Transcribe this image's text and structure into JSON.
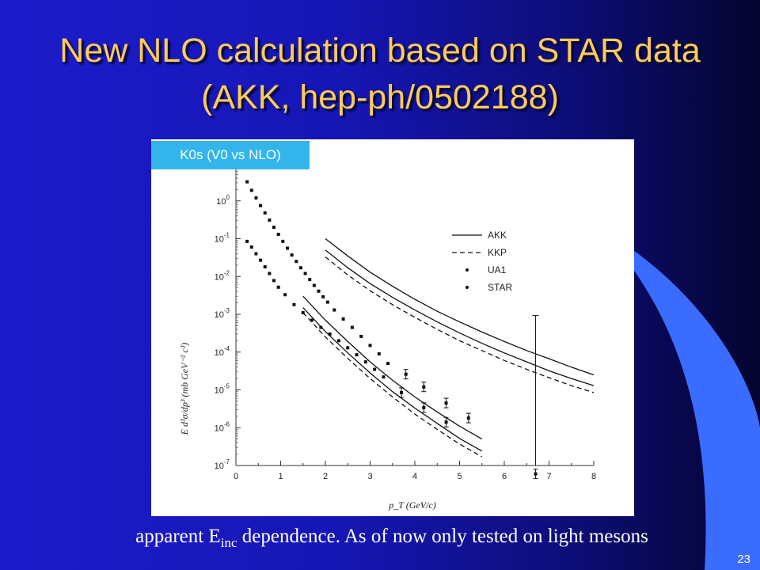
{
  "slide": {
    "title_line1": "New NLO calculation based on STAR data",
    "title_line2": "(AKK, hep-ph/0502188)",
    "chart_label": "K0s (V0 vs NLO)",
    "caption_pre": "apparent E",
    "caption_sub": "inc",
    "caption_post": " dependence. As of now only tested on light mesons",
    "slide_number": "23",
    "colors": {
      "background": "#1616b4",
      "title": "#ffcc55",
      "label_bg": "#33b5ec",
      "accent_shape": "#3a6cff"
    }
  },
  "chart_data": {
    "type": "scatter",
    "title": "",
    "xlabel": "p_T (GeV/c)",
    "ylabel": "E d³σ/dp³ (mb GeV⁻² c³)",
    "xlim": [
      0,
      8
    ],
    "ylim_log10": [
      -7,
      1
    ],
    "log_y": true,
    "grid": false,
    "legend_position": "top-right",
    "x_ticks": [
      "0",
      "1",
      "2",
      "3",
      "4",
      "5",
      "6",
      "7",
      "8"
    ],
    "y_ticks": [
      {
        "base": "10",
        "exp": "0",
        "log10": 0
      },
      {
        "base": "10",
        "exp": "-1",
        "log10": -1
      },
      {
        "base": "10",
        "exp": "-2",
        "log10": -2
      },
      {
        "base": "10",
        "exp": "-3",
        "log10": -3
      },
      {
        "base": "10",
        "exp": "-4",
        "log10": -4
      },
      {
        "base": "10",
        "exp": "-5",
        "log10": -5
      },
      {
        "base": "10",
        "exp": "-6",
        "log10": -6
      },
      {
        "base": "10",
        "exp": "-7",
        "log10": -7
      }
    ],
    "legend": [
      "AKK",
      "KKP",
      "UA1",
      "STAR"
    ],
    "series": [
      {
        "name": "UA1",
        "kind": "points",
        "x": [
          0.25,
          0.35,
          0.45,
          0.55,
          0.65,
          0.75,
          0.85,
          0.95,
          1.05,
          1.15,
          1.25,
          1.35,
          1.45,
          1.55,
          1.65,
          1.75,
          1.85,
          1.95,
          2.05,
          2.2,
          2.4,
          2.6,
          2.8,
          3.0,
          3.2,
          3.4
        ],
        "y": [
          3.2,
          1.9,
          1.2,
          0.75,
          0.48,
          0.31,
          0.2,
          0.13,
          0.085,
          0.056,
          0.037,
          0.025,
          0.017,
          0.012,
          0.0083,
          0.0058,
          0.0041,
          0.0029,
          0.0021,
          0.0013,
          0.00075,
          0.00045,
          0.00026,
          0.00015,
          9e-05,
          5e-05
        ]
      },
      {
        "name": "UA1",
        "kind": "points",
        "x": [
          3.8,
          4.2,
          4.7,
          5.2
        ],
        "y": [
          2.6e-05,
          1.2e-05,
          4.5e-06,
          1.8e-06
        ]
      },
      {
        "name": "STAR",
        "kind": "points",
        "x": [
          0.25,
          0.35,
          0.45,
          0.55,
          0.65,
          0.75,
          0.85,
          0.95,
          1.1,
          1.3,
          1.5,
          1.7,
          1.9,
          2.1,
          2.3,
          2.5,
          2.7,
          2.9,
          3.1,
          3.3
        ],
        "y": [
          0.085,
          0.06,
          0.04,
          0.027,
          0.018,
          0.012,
          0.0078,
          0.0052,
          0.0033,
          0.0018,
          0.0011,
          0.0007,
          0.00045,
          0.0003,
          0.0002,
          0.00013,
          8.5e-05,
          5.5e-05,
          3.5e-05,
          2.2e-05
        ]
      },
      {
        "name": "STAR",
        "kind": "points",
        "x": [
          3.7,
          4.2,
          4.7,
          6.7
        ],
        "y": [
          8.5e-06,
          3.4e-06,
          1.4e-06,
          6e-08
        ]
      },
      {
        "name": "AKK",
        "kind": "solid",
        "x": [
          2.0,
          2.5,
          3.0,
          3.5,
          4.0,
          4.5,
          5.0,
          5.5,
          6.0,
          6.5,
          7.0,
          7.5,
          8.0
        ],
        "y": [
          0.1,
          0.035,
          0.013,
          0.0055,
          0.0025,
          0.0012,
          0.00063,
          0.00034,
          0.00019,
          0.00011,
          6.7e-05,
          4e-05,
          2.5e-05
        ]
      },
      {
        "name": "AKK",
        "kind": "solid",
        "x": [
          2.0,
          2.5,
          3.0,
          3.5,
          4.0,
          4.5,
          5.0,
          5.5,
          6.0,
          6.5,
          7.0,
          7.5,
          8.0
        ],
        "y": [
          0.05,
          0.017,
          0.0065,
          0.0028,
          0.0013,
          0.00063,
          0.00032,
          0.00017,
          9.5e-05,
          5.5e-05,
          3.2e-05,
          2e-05,
          1.3e-05
        ]
      },
      {
        "name": "KKP",
        "kind": "dashed",
        "x": [
          2.0,
          2.5,
          3.0,
          3.5,
          4.0,
          4.5,
          5.0,
          5.5,
          6.0,
          6.5,
          7.0,
          7.5,
          8.0
        ],
        "y": [
          0.033,
          0.011,
          0.0042,
          0.0018,
          0.00083,
          0.0004,
          0.0002,
          0.00011,
          6e-05,
          3.5e-05,
          2.1e-05,
          1.3e-05,
          8.5e-06
        ]
      },
      {
        "name": "AKK",
        "kind": "solid",
        "x": [
          1.5,
          2.0,
          2.5,
          3.0,
          3.5,
          4.0,
          4.5,
          5.0,
          5.5
        ],
        "y": [
          0.003,
          0.0007,
          0.00019,
          5.5e-05,
          1.8e-05,
          6.5e-06,
          2.6e-06,
          1.1e-06,
          5e-07
        ]
      },
      {
        "name": "AKK",
        "kind": "solid",
        "x": [
          1.5,
          2.0,
          2.5,
          3.0,
          3.5,
          4.0,
          4.5,
          5.0,
          5.5
        ],
        "y": [
          0.0015,
          0.00035,
          9.5e-05,
          2.8e-05,
          9e-06,
          3.3e-06,
          1.3e-06,
          5.2e-07,
          2.4e-07
        ]
      },
      {
        "name": "KKP",
        "kind": "dashed",
        "x": [
          1.5,
          2.0,
          2.5,
          3.0,
          3.5,
          4.0,
          4.5,
          5.0,
          5.5
        ],
        "y": [
          0.0011,
          0.00025,
          6.8e-05,
          2e-05,
          6.5e-06,
          2.3e-06,
          9e-07,
          3.7e-07,
          1.7e-07
        ]
      }
    ]
  }
}
